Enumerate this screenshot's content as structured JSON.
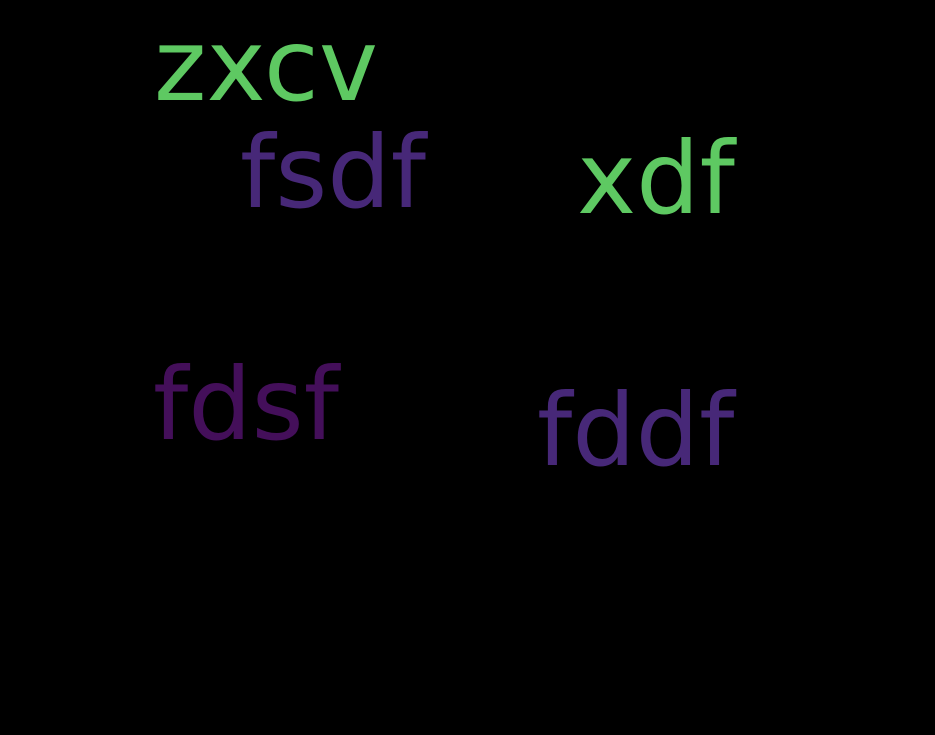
{
  "background_color": "#000000",
  "words": [
    {
      "text": "zxcv",
      "color": "#5ec962"
    },
    {
      "text": "fsdf",
      "color": "#472878"
    },
    {
      "text": "xdf",
      "color": "#5ec962"
    },
    {
      "text": "fdsf",
      "color": "#440f5a"
    },
    {
      "text": "fddf",
      "color": "#472878"
    }
  ]
}
